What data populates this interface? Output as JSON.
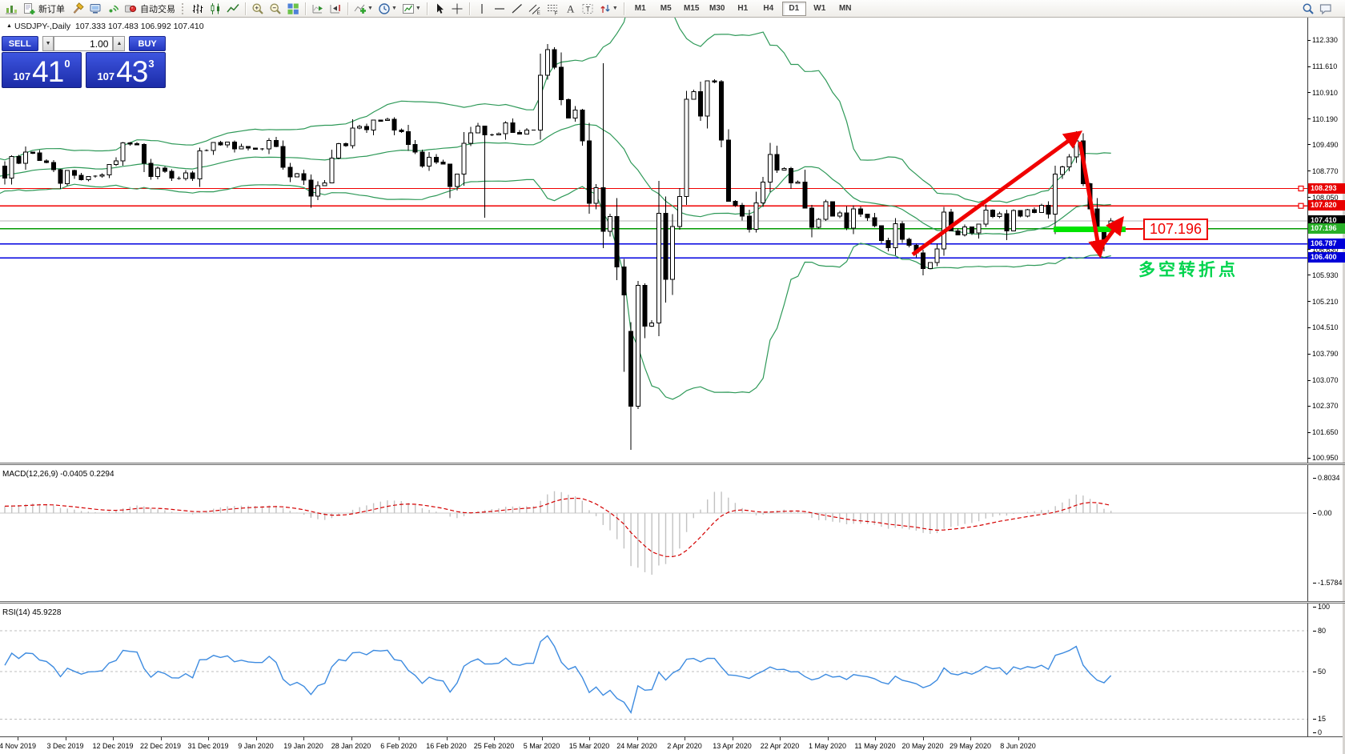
{
  "title": {
    "marker": "▲",
    "symbol": "USDJPY-,Daily",
    "ohlc": "107.333 107.483 106.992 107.410"
  },
  "toolbar": {
    "new_order": "新订单",
    "auto_trading": "自动交易",
    "timeframes": [
      "M1",
      "M5",
      "M15",
      "M30",
      "H1",
      "H4",
      "D1",
      "W1",
      "MN"
    ],
    "active_timeframe": "D1",
    "text_tool": "A",
    "label_tool": "T",
    "channel_tool": "E",
    "fibo_tool": "F"
  },
  "panel": {
    "sell": "SELL",
    "buy": "BUY",
    "volume": "1.00",
    "sell_prefix": "107",
    "sell_big": "41",
    "sell_sup": "0",
    "buy_prefix": "107",
    "buy_big": "43",
    "buy_sup": "3"
  },
  "price_axis": {
    "ticks": [
      "112.330",
      "111.610",
      "110.910",
      "110.190",
      "109.490",
      "108.770",
      "108.050",
      "106.630",
      "105.930",
      "105.210",
      "104.510",
      "103.790",
      "103.070",
      "102.370",
      "101.650",
      "100.950"
    ],
    "badges": [
      {
        "label": "108.293",
        "price": 108.293,
        "bg": "#e80000"
      },
      {
        "label": "107.820",
        "price": 107.82,
        "bg": "#e80000"
      },
      {
        "label": "107.410",
        "price": 107.41,
        "bg": "#000000"
      },
      {
        "label": "107.196",
        "price": 107.196,
        "bg": "#28b028"
      },
      {
        "label": "106.787",
        "price": 106.787,
        "bg": "#0000d8"
      },
      {
        "label": "106.400",
        "price": 106.4,
        "bg": "#0000d8"
      }
    ]
  },
  "levels": [
    {
      "price": 108.293,
      "color": "#f00000",
      "marker": true
    },
    {
      "price": 107.82,
      "color": "#f00000",
      "marker": true
    },
    {
      "price": 107.41,
      "color": "#b6b6b6",
      "marker": false
    },
    {
      "price": 107.196,
      "color": "#009900",
      "marker": false
    },
    {
      "price": 106.787,
      "color": "#0000e0",
      "marker": false
    },
    {
      "price": 106.4,
      "color": "#0000e0",
      "marker": false
    }
  ],
  "indicators": {
    "macd": {
      "label": "MACD(12,26,9)",
      "values": "-0.0405 0.2294",
      "axis": [
        "0.8034",
        "0.00",
        "-1.5784"
      ]
    },
    "rsi": {
      "label": "RSI(14)",
      "value": "45.9228",
      "axis": [
        "100",
        "80",
        "50",
        "15",
        "0"
      ],
      "levels": [
        80,
        50,
        15
      ]
    }
  },
  "annotations": {
    "callout": "107.196",
    "note": "多空转折点"
  },
  "date_axis": {
    "labels": [
      "4 Nov 2019",
      "3 Dec 2019",
      "12 Dec 2019",
      "22 Dec 2019",
      "31 Dec 2019",
      "9 Jan 2020",
      "19 Jan 2020",
      "28 Jan 2020",
      "6 Feb 2020",
      "16 Feb 2020",
      "25 Feb 2020",
      "5 Mar 2020",
      "15 Mar 2020",
      "24 Mar 2020",
      "2 Apr 2020",
      "13 Apr 2020",
      "22 Apr 2020",
      "1 May 2020",
      "11 May 2020",
      "20 May 2020",
      "29 May 2020",
      "8 Jun 2020"
    ]
  },
  "chart_data": {
    "type": "candlestick",
    "symbol": "USDJPY-",
    "timeframe": "Daily",
    "current_ohlc": {
      "open": 107.333,
      "high": 107.483,
      "low": 106.992,
      "close": 107.41
    },
    "bid": "107.410",
    "ask": "107.433",
    "y_axis_range": [
      100.85,
      112.66
    ],
    "indicator_params": {
      "bollinger": {
        "period": 20,
        "deviation": 2
      },
      "macd": [
        12,
        26,
        9
      ],
      "rsi": 14
    },
    "prepend_closes": [
      108.08,
      108.36,
      108.42,
      108.66,
      108.47,
      108.61,
      108.75,
      108.6,
      108.45,
      108.29,
      108.41,
      108.68,
      108.89,
      109.0,
      108.72,
      108.59,
      108.64,
      108.88,
      109.07,
      108.9
    ],
    "closes": [
      108.58,
      109.16,
      108.98,
      109.28,
      109.26,
      109.05,
      109.0,
      108.81,
      108.43,
      108.78,
      108.65,
      108.53,
      108.62,
      108.63,
      108.66,
      108.95,
      109.05,
      109.54,
      109.51,
      109.49,
      108.98,
      108.62,
      108.85,
      108.76,
      108.58,
      108.57,
      108.72,
      108.56,
      109.32,
      109.33,
      109.55,
      109.48,
      109.56,
      109.37,
      109.44,
      109.39,
      109.37,
      109.37,
      109.6,
      109.44,
      108.87,
      108.61,
      108.7,
      108.52,
      108.09,
      108.37,
      108.45,
      109.12,
      109.51,
      109.46,
      109.94,
      109.98,
      109.89,
      110.16,
      110.14,
      110.18,
      109.88,
      109.84,
      109.49,
      109.28,
      108.9,
      109.14,
      109.01,
      108.96,
      108.35,
      108.69,
      109.52,
      109.81,
      109.99,
      109.75,
      109.75,
      109.79,
      110.08,
      109.82,
      109.78,
      109.88,
      109.88,
      111.38,
      112.08,
      111.6,
      110.71,
      110.21,
      110.43,
      109.59,
      107.89,
      108.32,
      107.13,
      107.53,
      106.16,
      105.39,
      102.36,
      105.65,
      104.54,
      104.63,
      107.62,
      105.82,
      107.26,
      108.08,
      110.72,
      110.93,
      110.27,
      111.22,
      111.2,
      109.61,
      107.94,
      107.83,
      107.54,
      107.18,
      107.9,
      108.47,
      109.22,
      108.79,
      108.84,
      108.45,
      108.47,
      107.76,
      107.24,
      107.45,
      107.93,
      107.54,
      107.63,
      107.22,
      107.74,
      107.6,
      107.5,
      107.28,
      106.88,
      106.68,
      107.33,
      106.91,
      106.74,
      106.54,
      106.11,
      106.28,
      106.65,
      107.65,
      107.14,
      107.03,
      107.25,
      107.08,
      107.32,
      107.7,
      107.53,
      107.61,
      107.14,
      107.69,
      107.54,
      107.72,
      107.64,
      107.83,
      107.59,
      108.68,
      108.88,
      109.15,
      109.59,
      108.42,
      107.74,
      107.12,
      106.85,
      107.41
    ],
    "overrides": {
      "64": {
        "l": 107.77
      },
      "89": {
        "l": 107.5
      },
      "98": {
        "h": 112.23
      },
      "106": {
        "h": 111.71
      },
      "109": {
        "l": 103.3
      },
      "110": {
        "o": 104.4,
        "h": 104.65,
        "l": 101.18
      },
      "114": {
        "h": 108.5
      },
      "118": {
        "h": 110.95
      },
      "174": {
        "h": 109.85
      },
      "178": {
        "l": 106.58
      },
      "179": {
        "o": 107.333,
        "h": 107.483,
        "l": 106.992
      }
    }
  }
}
